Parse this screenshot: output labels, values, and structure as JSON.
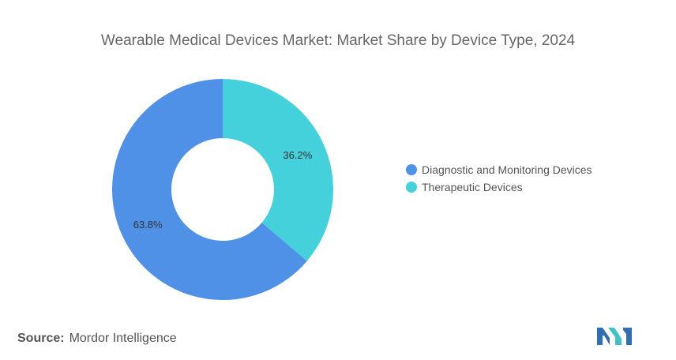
{
  "chart_data": {
    "type": "pie",
    "subtype": "donut",
    "title": "Wearable Medical Devices Market: Market Share by Device Type, 2024",
    "categories": [
      "Diagnostic and Monitoring Devices",
      "Therapeutic Devices"
    ],
    "values": [
      63.8,
      36.2
    ],
    "labels": [
      "63.8%",
      "36.2%"
    ],
    "colors": [
      "#4e91e6",
      "#44d1dc"
    ],
    "legend_position": "right"
  },
  "source": {
    "label": "Source:",
    "text": "Mordor Intelligence"
  },
  "logo": {
    "icon": "mordor-intelligence-logo",
    "colors": [
      "#2f6fb5",
      "#3fc3c9"
    ]
  }
}
